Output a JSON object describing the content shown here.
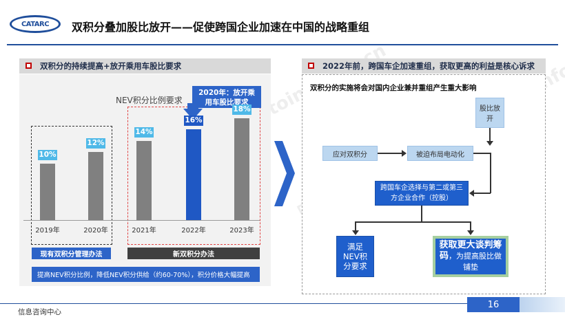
{
  "header": {
    "logo_text": "CATARC",
    "title": "双积分叠加股比放开——促使跨国企业加速在中国的战略重组"
  },
  "left_panel": {
    "heading": "双积分的持续提高+放开乘用车股比要求",
    "chart_data": {
      "type": "bar",
      "title": "NEV积分比例要求",
      "categories": [
        "2019年",
        "2020年",
        "2021年",
        "2022年",
        "2023年"
      ],
      "values": [
        10,
        12,
        14,
        16,
        18
      ],
      "value_labels": [
        "10%",
        "12%",
        "14%",
        "16%",
        "18%"
      ],
      "highlight_index": 3,
      "ylim": [
        0,
        20
      ]
    },
    "callout": "2020年：放开乘用车股比要求",
    "tag_old": "现有双积分管理办法",
    "tag_new": "新双积分办法",
    "footer_note": "提高NEV积分比例，降低NEV积分供给（约60-70%），积分价格大幅提高",
    "colors": {
      "bar": "#808080",
      "highlight": "#1f58c4",
      "value_box": "#4fb9e8",
      "tag": "#2d64c8"
    }
  },
  "right_panel": {
    "heading": "2022年前，跨国车企加速重组，获取更高的利益是核心诉求",
    "subtitle": "双积分的实施将会对国内企业兼并重组产生重大影响",
    "nodes": {
      "equity": "股比放开",
      "respond": "应对双积分",
      "forced": "被迫布局电动化",
      "choice": "跨国车企选择与第二或第三方企业合作（控股）",
      "meet": "满足NEV积分要求",
      "gain_big": "获取更大谈判筹码",
      "gain_small": "，为提高股比做铺垫"
    }
  },
  "watermark": "中国汽车工业信息网 www.autoinfo.org.cn",
  "footer": {
    "left": "信息咨询中心",
    "page": "16"
  }
}
